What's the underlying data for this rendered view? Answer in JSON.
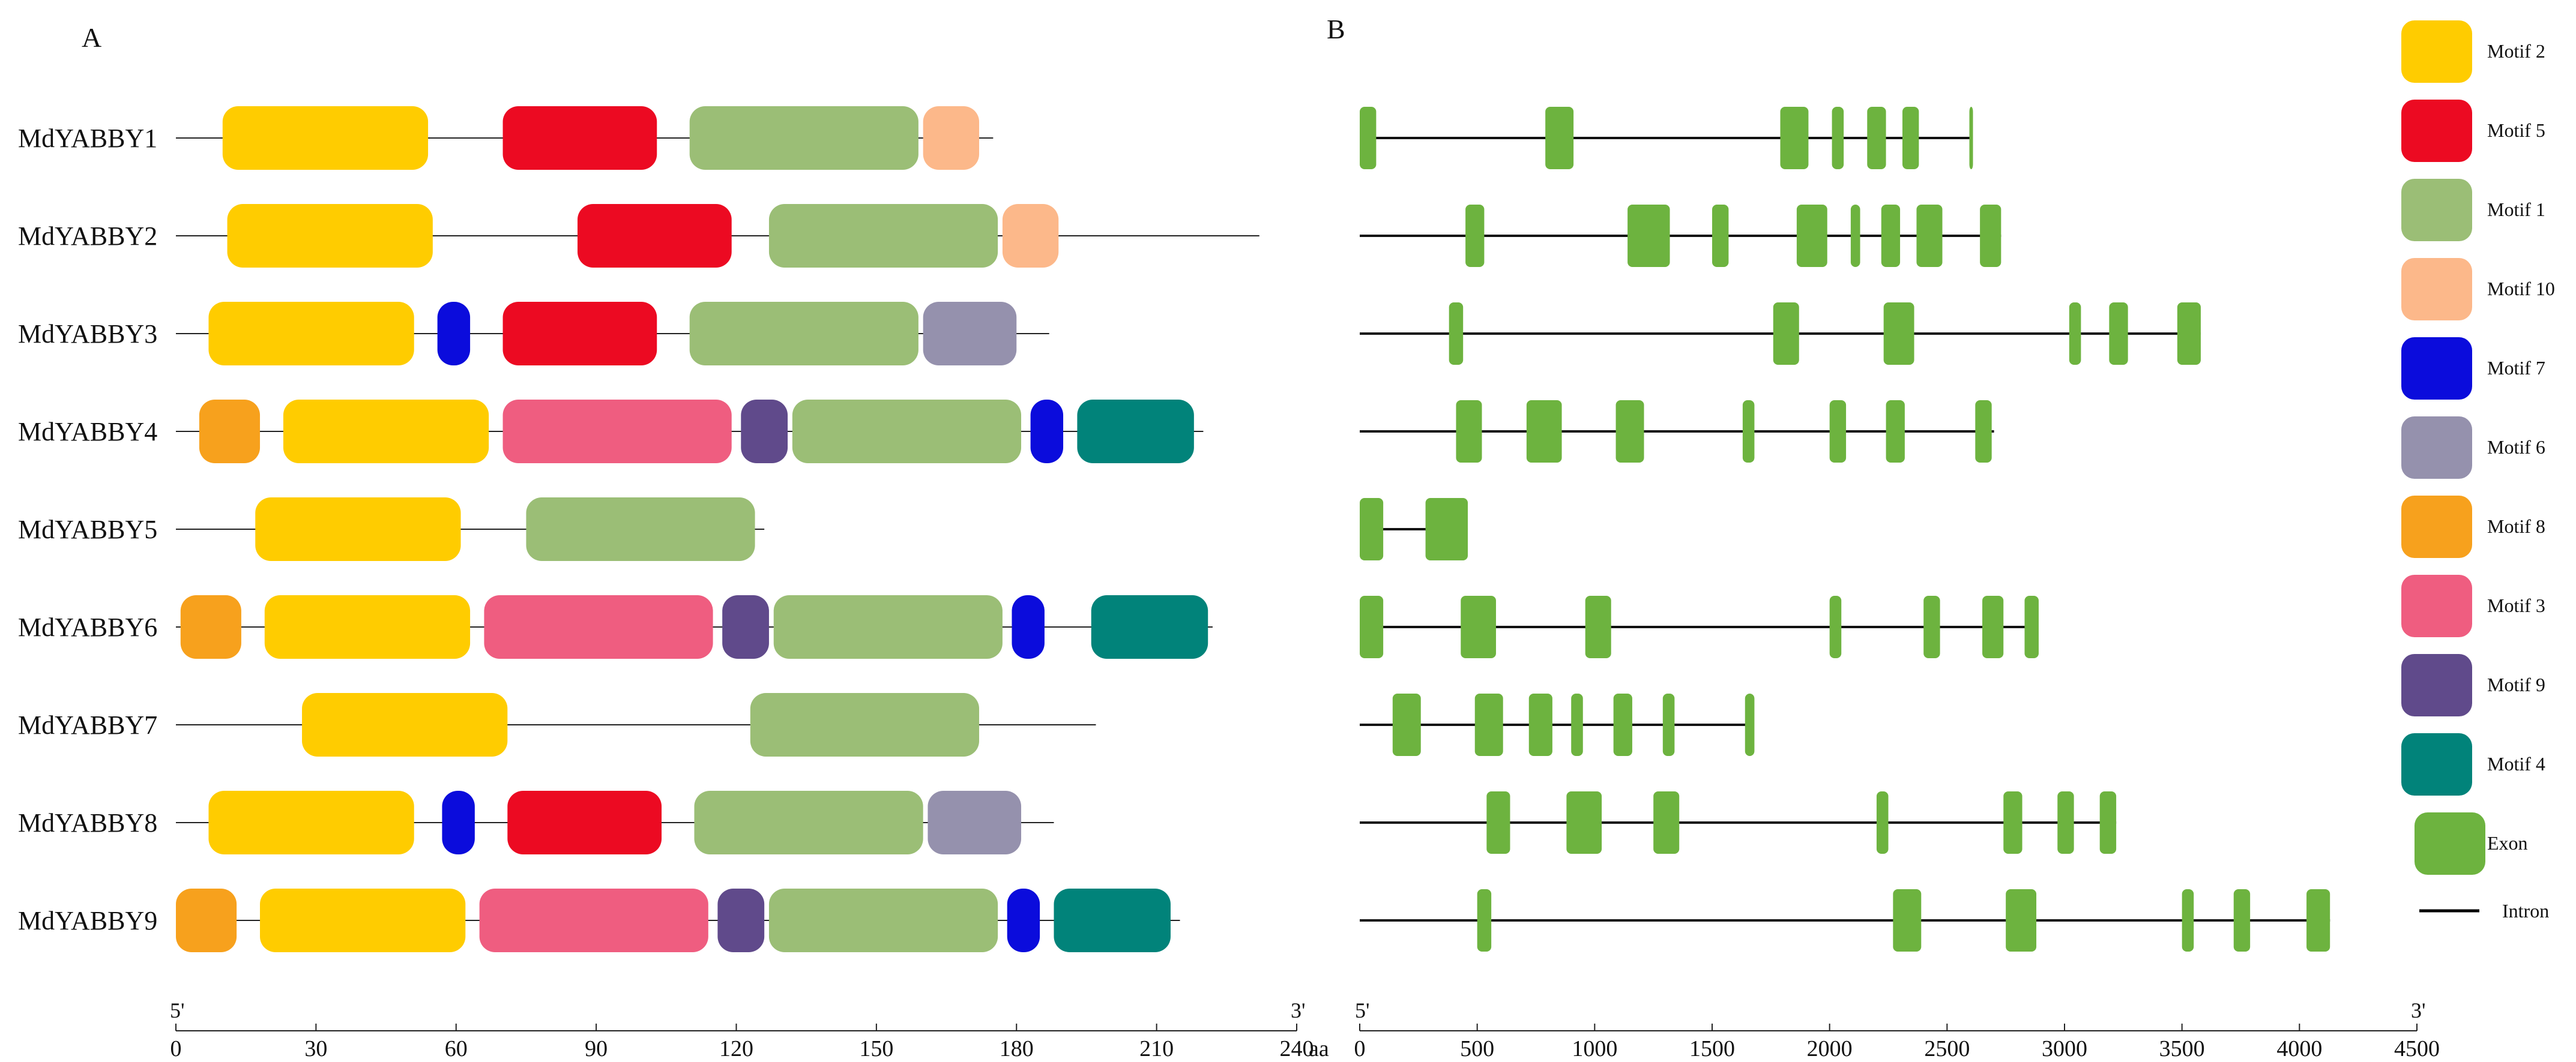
{
  "panel_a": {
    "label": "A",
    "axis": {
      "min": 0,
      "max": 240,
      "unit": "aa",
      "ticks": [
        0,
        30,
        60,
        90,
        120,
        150,
        180,
        210,
        240
      ],
      "start_label": "5'",
      "end_label": "3'"
    },
    "genes": [
      {
        "name": "MdYABBY1",
        "length": 175,
        "motifs": [
          {
            "m": "Motif 2",
            "s": 10,
            "e": 54
          },
          {
            "m": "Motif 5",
            "s": 70,
            "e": 103
          },
          {
            "m": "Motif 1",
            "s": 110,
            "e": 159
          },
          {
            "m": "Motif 10",
            "s": 160,
            "e": 172
          }
        ]
      },
      {
        "name": "MdYABBY2",
        "length": 232,
        "motifs": [
          {
            "m": "Motif 2",
            "s": 11,
            "e": 55
          },
          {
            "m": "Motif 5",
            "s": 86,
            "e": 119
          },
          {
            "m": "Motif 1",
            "s": 127,
            "e": 176
          },
          {
            "m": "Motif 10",
            "s": 177,
            "e": 189
          }
        ]
      },
      {
        "name": "MdYABBY3",
        "length": 187,
        "motifs": [
          {
            "m": "Motif 2",
            "s": 7,
            "e": 51
          },
          {
            "m": "Motif 7",
            "s": 56,
            "e": 63
          },
          {
            "m": "Motif 5",
            "s": 70,
            "e": 103
          },
          {
            "m": "Motif 1",
            "s": 110,
            "e": 159
          },
          {
            "m": "Motif 6",
            "s": 160,
            "e": 180
          }
        ]
      },
      {
        "name": "MdYABBY4",
        "length": 220,
        "motifs": [
          {
            "m": "Motif 8",
            "s": 5,
            "e": 18
          },
          {
            "m": "Motif 2",
            "s": 23,
            "e": 67
          },
          {
            "m": "Motif 3",
            "s": 70,
            "e": 119
          },
          {
            "m": "Motif 9",
            "s": 121,
            "e": 131
          },
          {
            "m": "Motif 1",
            "s": 132,
            "e": 181
          },
          {
            "m": "Motif 7",
            "s": 183,
            "e": 190
          },
          {
            "m": "Motif 4",
            "s": 193,
            "e": 218
          }
        ]
      },
      {
        "name": "MdYABBY5",
        "length": 126,
        "motifs": [
          {
            "m": "Motif 2",
            "s": 17,
            "e": 61
          },
          {
            "m": "Motif 1",
            "s": 75,
            "e": 124
          }
        ]
      },
      {
        "name": "MdYABBY6",
        "length": 222,
        "motifs": [
          {
            "m": "Motif 8",
            "s": 1,
            "e": 14
          },
          {
            "m": "Motif 2",
            "s": 19,
            "e": 63
          },
          {
            "m": "Motif 3",
            "s": 66,
            "e": 115
          },
          {
            "m": "Motif 9",
            "s": 117,
            "e": 127
          },
          {
            "m": "Motif 1",
            "s": 128,
            "e": 177
          },
          {
            "m": "Motif 7",
            "s": 179,
            "e": 186
          },
          {
            "m": "Motif 4",
            "s": 196,
            "e": 221
          }
        ]
      },
      {
        "name": "MdYABBY7",
        "length": 197,
        "motifs": [
          {
            "m": "Motif 2",
            "s": 27,
            "e": 71
          },
          {
            "m": "Motif 1",
            "s": 123,
            "e": 172
          }
        ]
      },
      {
        "name": "MdYABBY8",
        "length": 188,
        "motifs": [
          {
            "m": "Motif 2",
            "s": 7,
            "e": 51
          },
          {
            "m": "Motif 7",
            "s": 57,
            "e": 64
          },
          {
            "m": "Motif 5",
            "s": 71,
            "e": 104
          },
          {
            "m": "Motif 1",
            "s": 111,
            "e": 160
          },
          {
            "m": "Motif 6",
            "s": 161,
            "e": 181
          }
        ]
      },
      {
        "name": "MdYABBY9",
        "length": 215,
        "motifs": [
          {
            "m": "Motif 8",
            "s": 0,
            "e": 13
          },
          {
            "m": "Motif 2",
            "s": 18,
            "e": 62
          },
          {
            "m": "Motif 3",
            "s": 65,
            "e": 114
          },
          {
            "m": "Motif 9",
            "s": 116,
            "e": 126
          },
          {
            "m": "Motif 1",
            "s": 127,
            "e": 176
          },
          {
            "m": "Motif 7",
            "s": 178,
            "e": 185
          },
          {
            "m": "Motif 4",
            "s": 188,
            "e": 213
          }
        ]
      }
    ]
  },
  "panel_b": {
    "label": "B",
    "axis": {
      "min": 0,
      "max": 4500,
      "ticks": [
        0,
        500,
        1000,
        1500,
        2000,
        2500,
        3000,
        3500,
        4000,
        4500
      ],
      "start_label": "5'",
      "end_label": "3'"
    },
    "genes": [
      {
        "length": 2600,
        "exons": [
          [
            0,
            70
          ],
          [
            790,
            910
          ],
          [
            1790,
            1910
          ],
          [
            2010,
            2060
          ],
          [
            2160,
            2240
          ],
          [
            2310,
            2380
          ],
          [
            2595,
            2605
          ]
        ]
      },
      {
        "length": 2730,
        "exons": [
          [
            450,
            530
          ],
          [
            1140,
            1320
          ],
          [
            1500,
            1570
          ],
          [
            1860,
            1990
          ],
          [
            2090,
            2130
          ],
          [
            2220,
            2300
          ],
          [
            2370,
            2480
          ],
          [
            2640,
            2730
          ]
        ]
      },
      {
        "length": 3580,
        "exons": [
          [
            380,
            440
          ],
          [
            1760,
            1870
          ],
          [
            2230,
            2360
          ],
          [
            3020,
            3070
          ],
          [
            3190,
            3270
          ],
          [
            3480,
            3580
          ]
        ]
      },
      {
        "length": 2700,
        "exons": [
          [
            410,
            520
          ],
          [
            710,
            860
          ],
          [
            1090,
            1210
          ],
          [
            1630,
            1680
          ],
          [
            2000,
            2070
          ],
          [
            2240,
            2320
          ],
          [
            2620,
            2690
          ]
        ]
      },
      {
        "length": 460,
        "exons": [
          [
            0,
            100
          ],
          [
            280,
            460
          ]
        ]
      },
      {
        "length": 2880,
        "exons": [
          [
            0,
            100
          ],
          [
            430,
            580
          ],
          [
            960,
            1070
          ],
          [
            2000,
            2050
          ],
          [
            2400,
            2470
          ],
          [
            2650,
            2740
          ],
          [
            2830,
            2890
          ]
        ]
      },
      {
        "length": 1660,
        "exons": [
          [
            140,
            260
          ],
          [
            490,
            610
          ],
          [
            720,
            820
          ],
          [
            900,
            950
          ],
          [
            1080,
            1160
          ],
          [
            1290,
            1340
          ],
          [
            1640,
            1680
          ]
        ]
      },
      {
        "length": 3220,
        "exons": [
          [
            540,
            640
          ],
          [
            880,
            1030
          ],
          [
            1250,
            1360
          ],
          [
            2200,
            2250
          ],
          [
            2740,
            2820
          ],
          [
            2970,
            3040
          ],
          [
            3150,
            3220
          ]
        ]
      },
      {
        "length": 4130,
        "exons": [
          [
            500,
            560
          ],
          [
            2270,
            2390
          ],
          [
            2750,
            2880
          ],
          [
            3500,
            3550
          ],
          [
            3720,
            3790
          ],
          [
            4030,
            4130
          ]
        ]
      }
    ]
  },
  "legend": [
    {
      "label": "Motif 2",
      "color": "#FFCC00",
      "type": "motif"
    },
    {
      "label": "Motif 5",
      "color": "#EC0A22",
      "type": "motif"
    },
    {
      "label": "Motif 1",
      "color": "#9BBE76",
      "type": "motif"
    },
    {
      "label": "Motif 10",
      "color": "#FCB88A",
      "type": "motif"
    },
    {
      "label": "Motif 7",
      "color": "#0B0CDC",
      "type": "motif"
    },
    {
      "label": "Motif 6",
      "color": "#9591AD",
      "type": "motif"
    },
    {
      "label": "Motif 8",
      "color": "#F7A11D",
      "type": "motif"
    },
    {
      "label": "Motif 3",
      "color": "#EF5D80",
      "type": "motif"
    },
    {
      "label": "Motif 9",
      "color": "#604A8B",
      "type": "motif"
    },
    {
      "label": "Motif 4",
      "color": "#01837A",
      "type": "motif"
    },
    {
      "label": "Exon",
      "color": "#6DB33F",
      "type": "exon"
    },
    {
      "label": "Intron",
      "color": "#000000",
      "type": "line"
    }
  ]
}
